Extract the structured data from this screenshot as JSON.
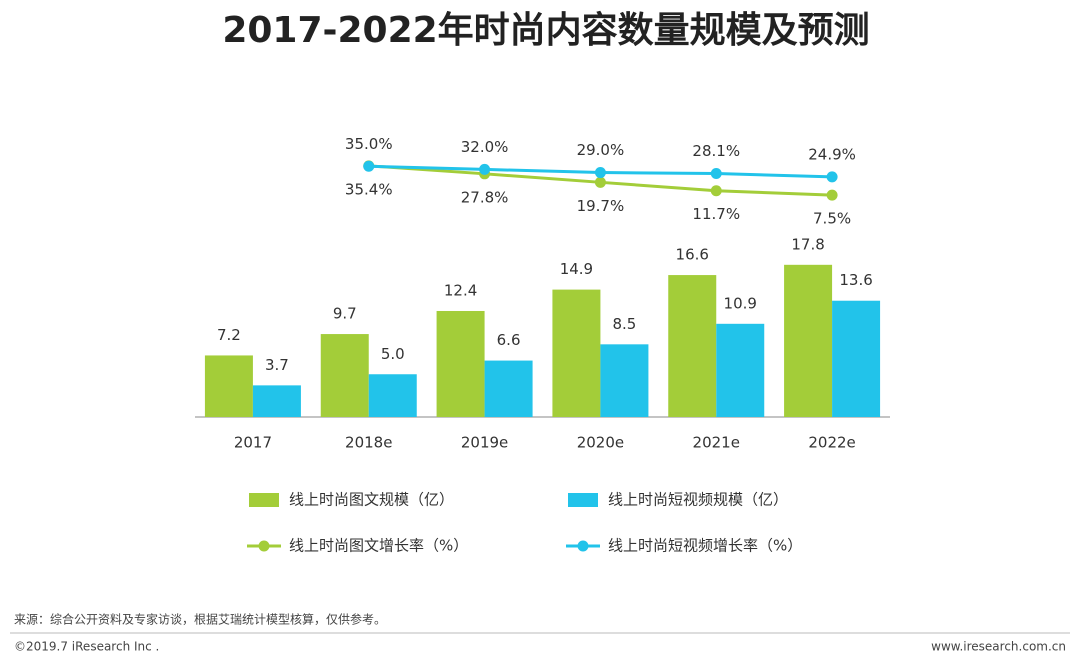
{
  "chart_data": {
    "type": "bar",
    "title": "2017-2022年时尚内容数量规模及预测",
    "categories": [
      "2017",
      "2018e",
      "2019e",
      "2020e",
      "2021e",
      "2022e"
    ],
    "ylim": [
      0,
      20
    ],
    "y2lim": [
      0,
      40
    ],
    "series": [
      {
        "name": "线上时尚图文规模（亿）",
        "type": "bar",
        "color": "#a3cd39",
        "values": [
          7.2,
          9.7,
          12.4,
          14.9,
          16.6,
          17.8
        ]
      },
      {
        "name": "线上时尚短视频规模（亿）",
        "type": "bar",
        "color": "#22c3ea",
        "values": [
          3.7,
          5.0,
          6.6,
          8.5,
          10.9,
          13.6
        ],
        "value_labels": [
          "3.7",
          "5.0",
          "6.6",
          "8.5",
          "10.9",
          "13.6"
        ]
      },
      {
        "name": "线上时尚图文增长率（%）",
        "type": "line",
        "axis": "y2",
        "color": "#a3cd39",
        "values": [
          null,
          35.4,
          27.8,
          19.7,
          11.7,
          7.5
        ],
        "value_labels": [
          null,
          "35.4%",
          "27.8%",
          "19.7%",
          "11.7%",
          "7.5%"
        ]
      },
      {
        "name": "线上时尚短视频增长率（%）",
        "type": "line",
        "axis": "y2",
        "color": "#22c3ea",
        "values": [
          null,
          35.0,
          32.0,
          29.0,
          28.1,
          24.9
        ],
        "value_labels": [
          null,
          "35.0%",
          "32.0%",
          "29.0%",
          "28.1%",
          "24.9%"
        ]
      }
    ]
  },
  "footer": {
    "source": "来源：综合公开资料及专家访谈，根据艾瑞统计模型核算，仅供参考。",
    "copyright": "©2019.7 iResearch Inc .",
    "website": "www.iresearch.com.cn"
  }
}
